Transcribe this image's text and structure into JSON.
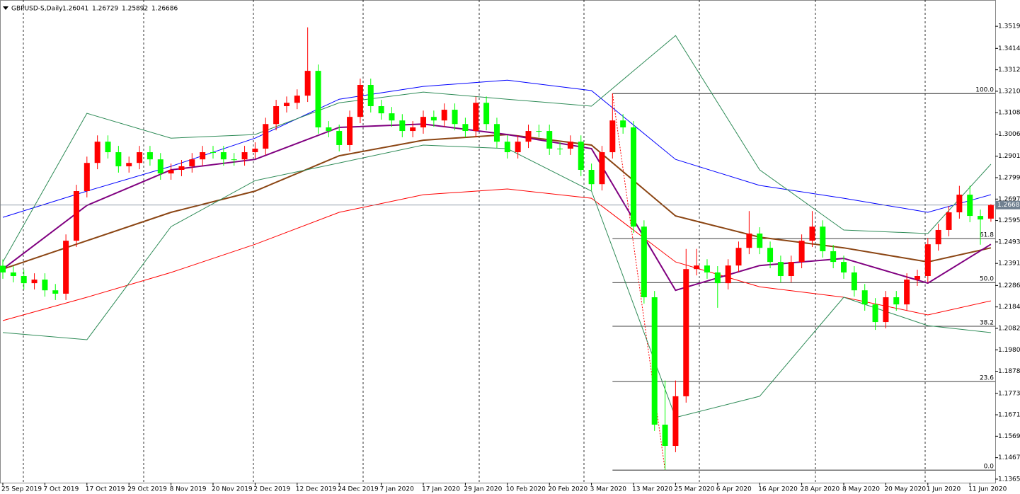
{
  "chart_data": {
    "type": "candlestick",
    "title": "GBPUSD-S,Daily",
    "up_color": "#ff0000",
    "down_color": "#00ff00",
    "xlim": [
      -0.27,
      94.41
    ],
    "ylim": [
      1.1348,
      1.3644
    ],
    "xticks": [
      {
        "value": 0,
        "label": "25 Sep 2019"
      },
      {
        "value": 4,
        "label": "7 Oct 2019"
      },
      {
        "value": 8,
        "label": "17 Oct 2019"
      },
      {
        "value": 12,
        "label": "29 Oct 2019"
      },
      {
        "value": 16,
        "label": "8 Nov 2019"
      },
      {
        "value": 20,
        "label": "20 Nov 2019"
      },
      {
        "value": 24,
        "label": "2 Dec 2019"
      },
      {
        "value": 28,
        "label": "12 Dec 2019"
      },
      {
        "value": 32,
        "label": "24 Dec 2019"
      },
      {
        "value": 36,
        "label": "7 Jan 2020"
      },
      {
        "value": 40,
        "label": "17 Jan 2020"
      },
      {
        "value": 44,
        "label": "29 Jan 2020"
      },
      {
        "value": 48,
        "label": "10 Feb 2020"
      },
      {
        "value": 52,
        "label": "20 Feb 2020"
      },
      {
        "value": 56,
        "label": "3 Mar 2020"
      },
      {
        "value": 60,
        "label": "13 Mar 2020"
      },
      {
        "value": 64,
        "label": "25 Mar 2020"
      },
      {
        "value": 68,
        "label": "6 Apr 2020"
      },
      {
        "value": 72,
        "label": "16 Apr 2020"
      },
      {
        "value": 76,
        "label": "28 Apr 2020"
      },
      {
        "value": 80,
        "label": "8 May 2020"
      },
      {
        "value": 84,
        "label": "20 May 2020"
      },
      {
        "value": 88,
        "label": "1 Jun 2020"
      },
      {
        "value": 92,
        "label": "11 Jun 2020"
      }
    ],
    "yticks": [
      {
        "value": 1.3519,
        "label": "1.35190"
      },
      {
        "value": 1.3414,
        "label": "1.34140"
      },
      {
        "value": 1.3312,
        "label": "1.33120"
      },
      {
        "value": 1.321,
        "label": "1.32100"
      },
      {
        "value": 1.3108,
        "label": "1.31080"
      },
      {
        "value": 1.3006,
        "label": "1.30060"
      },
      {
        "value": 1.2901,
        "label": "1.29010"
      },
      {
        "value": 1.2799,
        "label": "1.27990"
      },
      {
        "value": 1.2697,
        "label": "1.26970"
      },
      {
        "value": 1.2595,
        "label": "1.25950"
      },
      {
        "value": 1.2493,
        "label": "1.24930"
      },
      {
        "value": 1.2391,
        "label": "1.23910"
      },
      {
        "value": 1.2286,
        "label": "1.22860"
      },
      {
        "value": 1.2184,
        "label": "1.21840"
      },
      {
        "value": 1.2082,
        "label": "1.20820"
      },
      {
        "value": 1.198,
        "label": "1.19800"
      },
      {
        "value": 1.1878,
        "label": "1.18780"
      },
      {
        "value": 1.1773,
        "label": "1.17730"
      },
      {
        "value": 1.1671,
        "label": "1.16710"
      },
      {
        "value": 1.1569,
        "label": "1.15690"
      },
      {
        "value": 1.1467,
        "label": "1.14670"
      },
      {
        "value": 1.1365,
        "label": "1.13650"
      }
    ],
    "open": [
      1.238,
      1.2348,
      1.2331,
      1.2297,
      1.2314,
      1.2263,
      1.2247,
      1.2499,
      1.2735,
      1.2869,
      1.297,
      1.292,
      1.2853,
      1.2869,
      1.292,
      1.2886,
      1.2819,
      1.2836,
      1.2853,
      1.2886,
      1.292,
      1.292,
      1.2886,
      1.2886,
      1.292,
      1.2937,
      1.3054,
      1.3139,
      1.3155,
      1.3189,
      1.3307,
      1.3038,
      1.3021,
      1.2954,
      1.3088,
      1.324,
      1.3139,
      1.3105,
      1.3071,
      1.3021,
      1.3038,
      1.3088,
      1.3071,
      1.3122,
      1.3054,
      1.3021,
      1.3155,
      1.3054,
      1.297,
      1.292,
      1.297,
      1.3021,
      1.3021,
      1.2937,
      1.2937,
      1.297,
      1.2836,
      1.2768,
      1.292,
      1.3071,
      1.3038,
      1.2566,
      1.223,
      1.1624,
      1.1523,
      1.1759,
      1.2364,
      1.2381,
      1.2348,
      1.2297,
      1.2381,
      1.2465,
      1.2533,
      1.2465,
      1.2398,
      1.2331,
      1.2398,
      1.2499,
      1.2566,
      1.2449,
      1.2398,
      1.2348,
      1.2263,
      1.2196,
      1.2112,
      1.223,
      1.2196,
      1.2314,
      1.2331,
      1.2482,
      1.255,
      1.2634,
      1.2718,
      1.2617,
      1.26041
    ],
    "high": [
      1.241,
      1.2378,
      1.2361,
      1.2344,
      1.2344,
      1.2293,
      1.2529,
      1.2765,
      1.2899,
      1.3,
      1.3,
      1.295,
      1.2899,
      1.295,
      1.295,
      1.2916,
      1.2866,
      1.2883,
      1.2916,
      1.295,
      1.295,
      1.295,
      1.2916,
      1.295,
      1.2967,
      1.3084,
      1.3169,
      1.3185,
      1.3219,
      1.3514,
      1.3337,
      1.3068,
      1.3051,
      1.3118,
      1.327,
      1.327,
      1.3169,
      1.3135,
      1.3101,
      1.3068,
      1.3118,
      1.3118,
      1.3152,
      1.3152,
      1.3084,
      1.3185,
      1.3185,
      1.3084,
      1.3,
      1.3,
      1.3051,
      1.3051,
      1.3051,
      1.2967,
      1.3,
      1.3,
      1.2866,
      1.295,
      1.3199,
      1.3101,
      1.3068,
      1.2596,
      1.226,
      1.1834,
      1.1834,
      1.246,
      1.246,
      1.2411,
      1.2378,
      1.2411,
      1.2495,
      1.264,
      1.2563,
      1.2495,
      1.2428,
      1.2428,
      1.2529,
      1.264,
      1.2596,
      1.2479,
      1.2428,
      1.2378,
      1.2293,
      1.2226,
      1.226,
      1.226,
      1.2344,
      1.2361,
      1.2512,
      1.258,
      1.2664,
      1.276,
      1.276,
      1.2647,
      1.26729
    ],
    "low": [
      1.2318,
      1.2301,
      1.2267,
      1.2267,
      1.2233,
      1.2217,
      1.2217,
      1.2469,
      1.2705,
      1.2839,
      1.289,
      1.2823,
      1.2823,
      1.2839,
      1.2856,
      1.2789,
      1.2789,
      1.2806,
      1.2823,
      1.2856,
      1.289,
      1.2856,
      1.2856,
      1.2856,
      1.289,
      1.2907,
      1.3024,
      1.3109,
      1.3125,
      1.3159,
      1.3008,
      1.2991,
      1.2924,
      1.2924,
      1.3058,
      1.3109,
      1.3075,
      1.3041,
      1.2991,
      1.2991,
      1.3008,
      1.3041,
      1.3041,
      1.3024,
      1.2991,
      1.2991,
      1.3024,
      1.294,
      1.289,
      1.289,
      1.294,
      1.2991,
      1.2907,
      1.2907,
      1.2907,
      1.2806,
      1.2738,
      1.2738,
      1.289,
      1.3008,
      1.2536,
      1.22,
      1.1594,
      1.1409,
      1.1493,
      1.1729,
      1.2334,
      1.2318,
      1.218,
      1.2267,
      1.2351,
      1.2435,
      1.2435,
      1.2368,
      1.2301,
      1.2301,
      1.2368,
      1.2469,
      1.2419,
      1.2368,
      1.2318,
      1.2233,
      1.2166,
      1.2075,
      1.2082,
      1.2166,
      1.2166,
      1.2284,
      1.2301,
      1.2452,
      1.252,
      1.2604,
      1.2587,
      1.248,
      1.25892
    ],
    "close": [
      1.2348,
      1.2331,
      1.2297,
      1.2314,
      1.2263,
      1.2247,
      1.2499,
      1.2735,
      1.2869,
      1.297,
      1.292,
      1.2853,
      1.2869,
      1.292,
      1.2886,
      1.2819,
      1.2836,
      1.2853,
      1.2886,
      1.292,
      1.292,
      1.2886,
      1.2886,
      1.292,
      1.2937,
      1.3054,
      1.3139,
      1.3155,
      1.3189,
      1.3307,
      1.3038,
      1.3021,
      1.2954,
      1.3088,
      1.324,
      1.3139,
      1.3105,
      1.3071,
      1.3021,
      1.3038,
      1.3088,
      1.3071,
      1.3122,
      1.3054,
      1.3021,
      1.3155,
      1.3054,
      1.297,
      1.292,
      1.297,
      1.3021,
      1.3021,
      1.2937,
      1.2937,
      1.297,
      1.2836,
      1.2768,
      1.292,
      1.3071,
      1.3038,
      1.2566,
      1.223,
      1.1624,
      1.1523,
      1.1759,
      1.2364,
      1.2381,
      1.2348,
      1.2297,
      1.2381,
      1.2465,
      1.2533,
      1.2465,
      1.2398,
      1.2331,
      1.2398,
      1.2499,
      1.2566,
      1.2449,
      1.2398,
      1.2348,
      1.2263,
      1.2196,
      1.2112,
      1.223,
      1.2196,
      1.2314,
      1.2331,
      1.2482,
      1.255,
      1.2634,
      1.2718,
      1.2617,
      1.26,
      1.26686
    ],
    "indicator_x": [
      0,
      8,
      16,
      24,
      32,
      40,
      48,
      56,
      64,
      72,
      80,
      88,
      94
    ],
    "indicators": [
      {
        "color": "#0000ff",
        "width": 1,
        "values": [
          1.261,
          1.2735,
          1.2853,
          1.2987,
          1.3172,
          1.3233,
          1.3263,
          1.3213,
          1.2886,
          1.2762,
          1.2701,
          1.2634,
          1.2718
        ]
      },
      {
        "color": "#ff0000",
        "width": 1,
        "values": [
          1.2119,
          1.223,
          1.2348,
          1.2482,
          1.2634,
          1.2718,
          1.2745,
          1.2701,
          1.2398,
          1.228,
          1.223,
          1.2146,
          1.2213
        ]
      },
      {
        "color": "#8b4513",
        "width": 2,
        "values": [
          1.2364,
          1.2499,
          1.2634,
          1.2735,
          1.2903,
          1.2977,
          1.3004,
          1.2954,
          1.2617,
          1.2516,
          1.2465,
          1.2398,
          1.2465
        ]
      },
      {
        "color": "#800080",
        "width": 2,
        "values": [
          1.2364,
          1.2667,
          1.2836,
          1.2886,
          1.3038,
          1.3054,
          1.3004,
          1.2937,
          1.2263,
          1.2381,
          1.2415,
          1.2297,
          1.2482
        ]
      },
      {
        "color": "#2e8b57",
        "width": 1,
        "values": [
          1.2398,
          1.3105,
          1.2987,
          1.3004,
          1.3155,
          1.3206,
          1.3172,
          1.3139,
          1.3475,
          1.2836,
          1.255,
          1.2533,
          1.2863
        ]
      },
      {
        "color": "#2e8b57",
        "width": 1,
        "values": [
          1.2062,
          1.2028,
          1.2566,
          1.2785,
          1.2869,
          1.2954,
          1.2937,
          1.2735,
          1.1658,
          1.1759,
          1.223,
          1.2095,
          1.2062
        ]
      }
    ],
    "fib_start": 58,
    "fib": [
      {
        "value": 1.3199,
        "label": "100.0"
      },
      {
        "value": 1.2509,
        "label": "61.8"
      },
      {
        "value": 1.23,
        "label": "50.0"
      },
      {
        "value": 1.2092,
        "label": "38.2"
      },
      {
        "value": 1.1829,
        "label": "23.6"
      },
      {
        "value": 1.1408,
        "label": "0.0"
      }
    ]
  }
}
